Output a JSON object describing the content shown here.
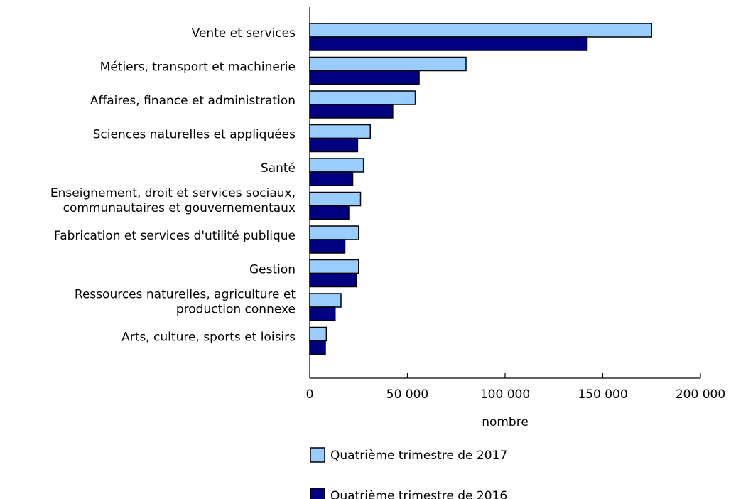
{
  "chart_data": {
    "type": "bar",
    "orientation": "horizontal",
    "categories": [
      [
        "Vente et services"
      ],
      [
        "Métiers, transport et machinerie"
      ],
      [
        "Affaires, finance et administration"
      ],
      [
        "Sciences naturelles et appliquées"
      ],
      [
        "Santé"
      ],
      [
        "Enseignement, droit et services sociaux,",
        "communautaires et gouvernementaux"
      ],
      [
        "Fabrication et services d'utilité publique"
      ],
      [
        "Gestion"
      ],
      [
        "Ressources naturelles, agriculture et",
        "production connexe"
      ],
      [
        "Arts, culture, sports et loisirs"
      ]
    ],
    "series": [
      {
        "name": "Quatrième trimestre de 2017",
        "color": "#99ccff",
        "values": [
          175000,
          80000,
          54000,
          31000,
          27500,
          26000,
          25000,
          25000,
          16000,
          8500
        ]
      },
      {
        "name": "Quatrième trimestre de 2016",
        "color": "#000080",
        "values": [
          142000,
          56000,
          42500,
          24500,
          22000,
          20000,
          18000,
          24000,
          13000,
          8000
        ]
      }
    ],
    "xlabel": "nombre",
    "xlim": [
      0,
      200000
    ],
    "xticks": [
      0,
      50000,
      100000,
      150000,
      200000
    ],
    "xtick_labels": [
      "0",
      "50 000",
      "100 000",
      "150 000",
      "200 000"
    ],
    "grid": false,
    "legend_position": "bottom"
  }
}
